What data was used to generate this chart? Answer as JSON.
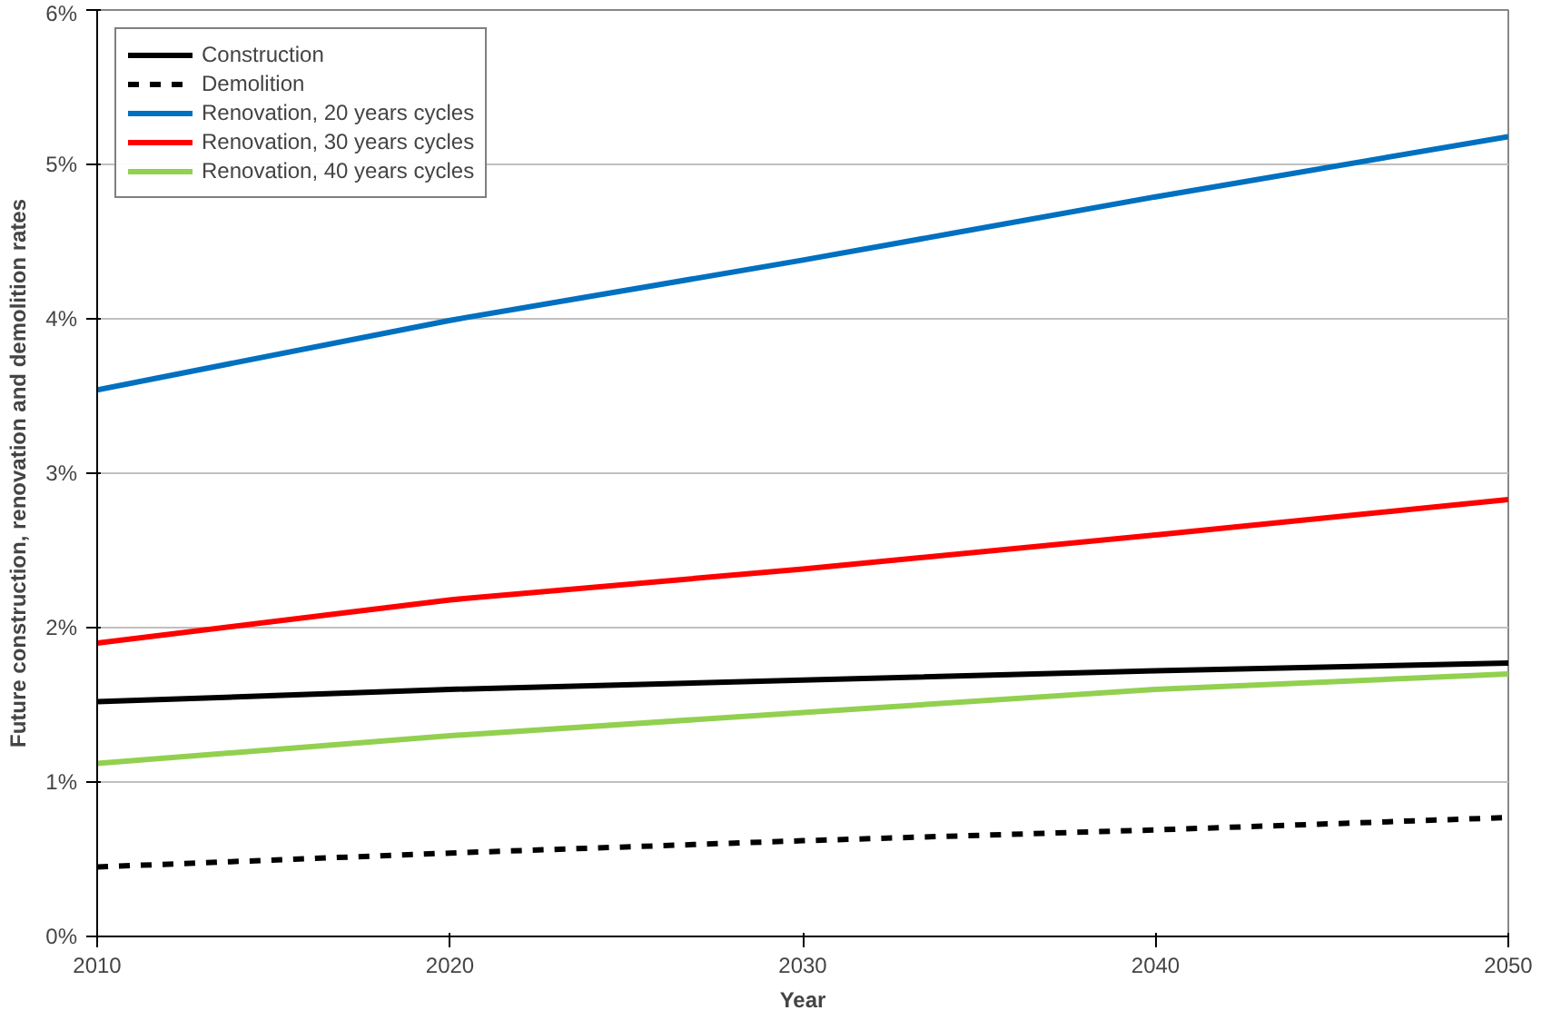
{
  "chart_data": {
    "type": "line",
    "xlabel": "Year",
    "ylabel": "Future construction, renovation and demolition rates",
    "x": [
      2010,
      2020,
      2030,
      2040,
      2050
    ],
    "series": [
      {
        "name": "Construction",
        "color": "#000000",
        "values": [
          1.52,
          1.6,
          1.66,
          1.72,
          1.77
        ]
      },
      {
        "name": "Demolition",
        "color": "#000000",
        "line_style": "dashed",
        "values": [
          0.45,
          0.54,
          0.62,
          0.69,
          0.77
        ]
      },
      {
        "name": "Renovation, 20 years cycles",
        "color": "#0070c0",
        "values": [
          3.54,
          3.99,
          4.38,
          4.79,
          5.18
        ]
      },
      {
        "name": "Renovation, 30 years cycles",
        "color": "#ff0000",
        "values": [
          1.9,
          2.18,
          2.38,
          2.6,
          2.83
        ]
      },
      {
        "name": "Renovation, 40 years cycles",
        "color": "#92d050",
        "values": [
          1.12,
          1.3,
          1.45,
          1.6,
          1.7
        ]
      }
    ],
    "xlim": [
      2010,
      2050
    ],
    "xticks": [
      2010,
      2020,
      2030,
      2040,
      2050
    ],
    "ylim": [
      0,
      6
    ],
    "yticks": [
      {
        "value": 0,
        "label": "0%"
      },
      {
        "value": 1,
        "label": "1%"
      },
      {
        "value": 2,
        "label": "2%"
      },
      {
        "value": 3,
        "label": "3%"
      },
      {
        "value": 4,
        "label": "4%"
      },
      {
        "value": 5,
        "label": "5%"
      },
      {
        "value": 6,
        "label": "6%"
      }
    ],
    "grid": "y",
    "legend": "top left",
    "line_style": "solid",
    "marker": "none"
  }
}
